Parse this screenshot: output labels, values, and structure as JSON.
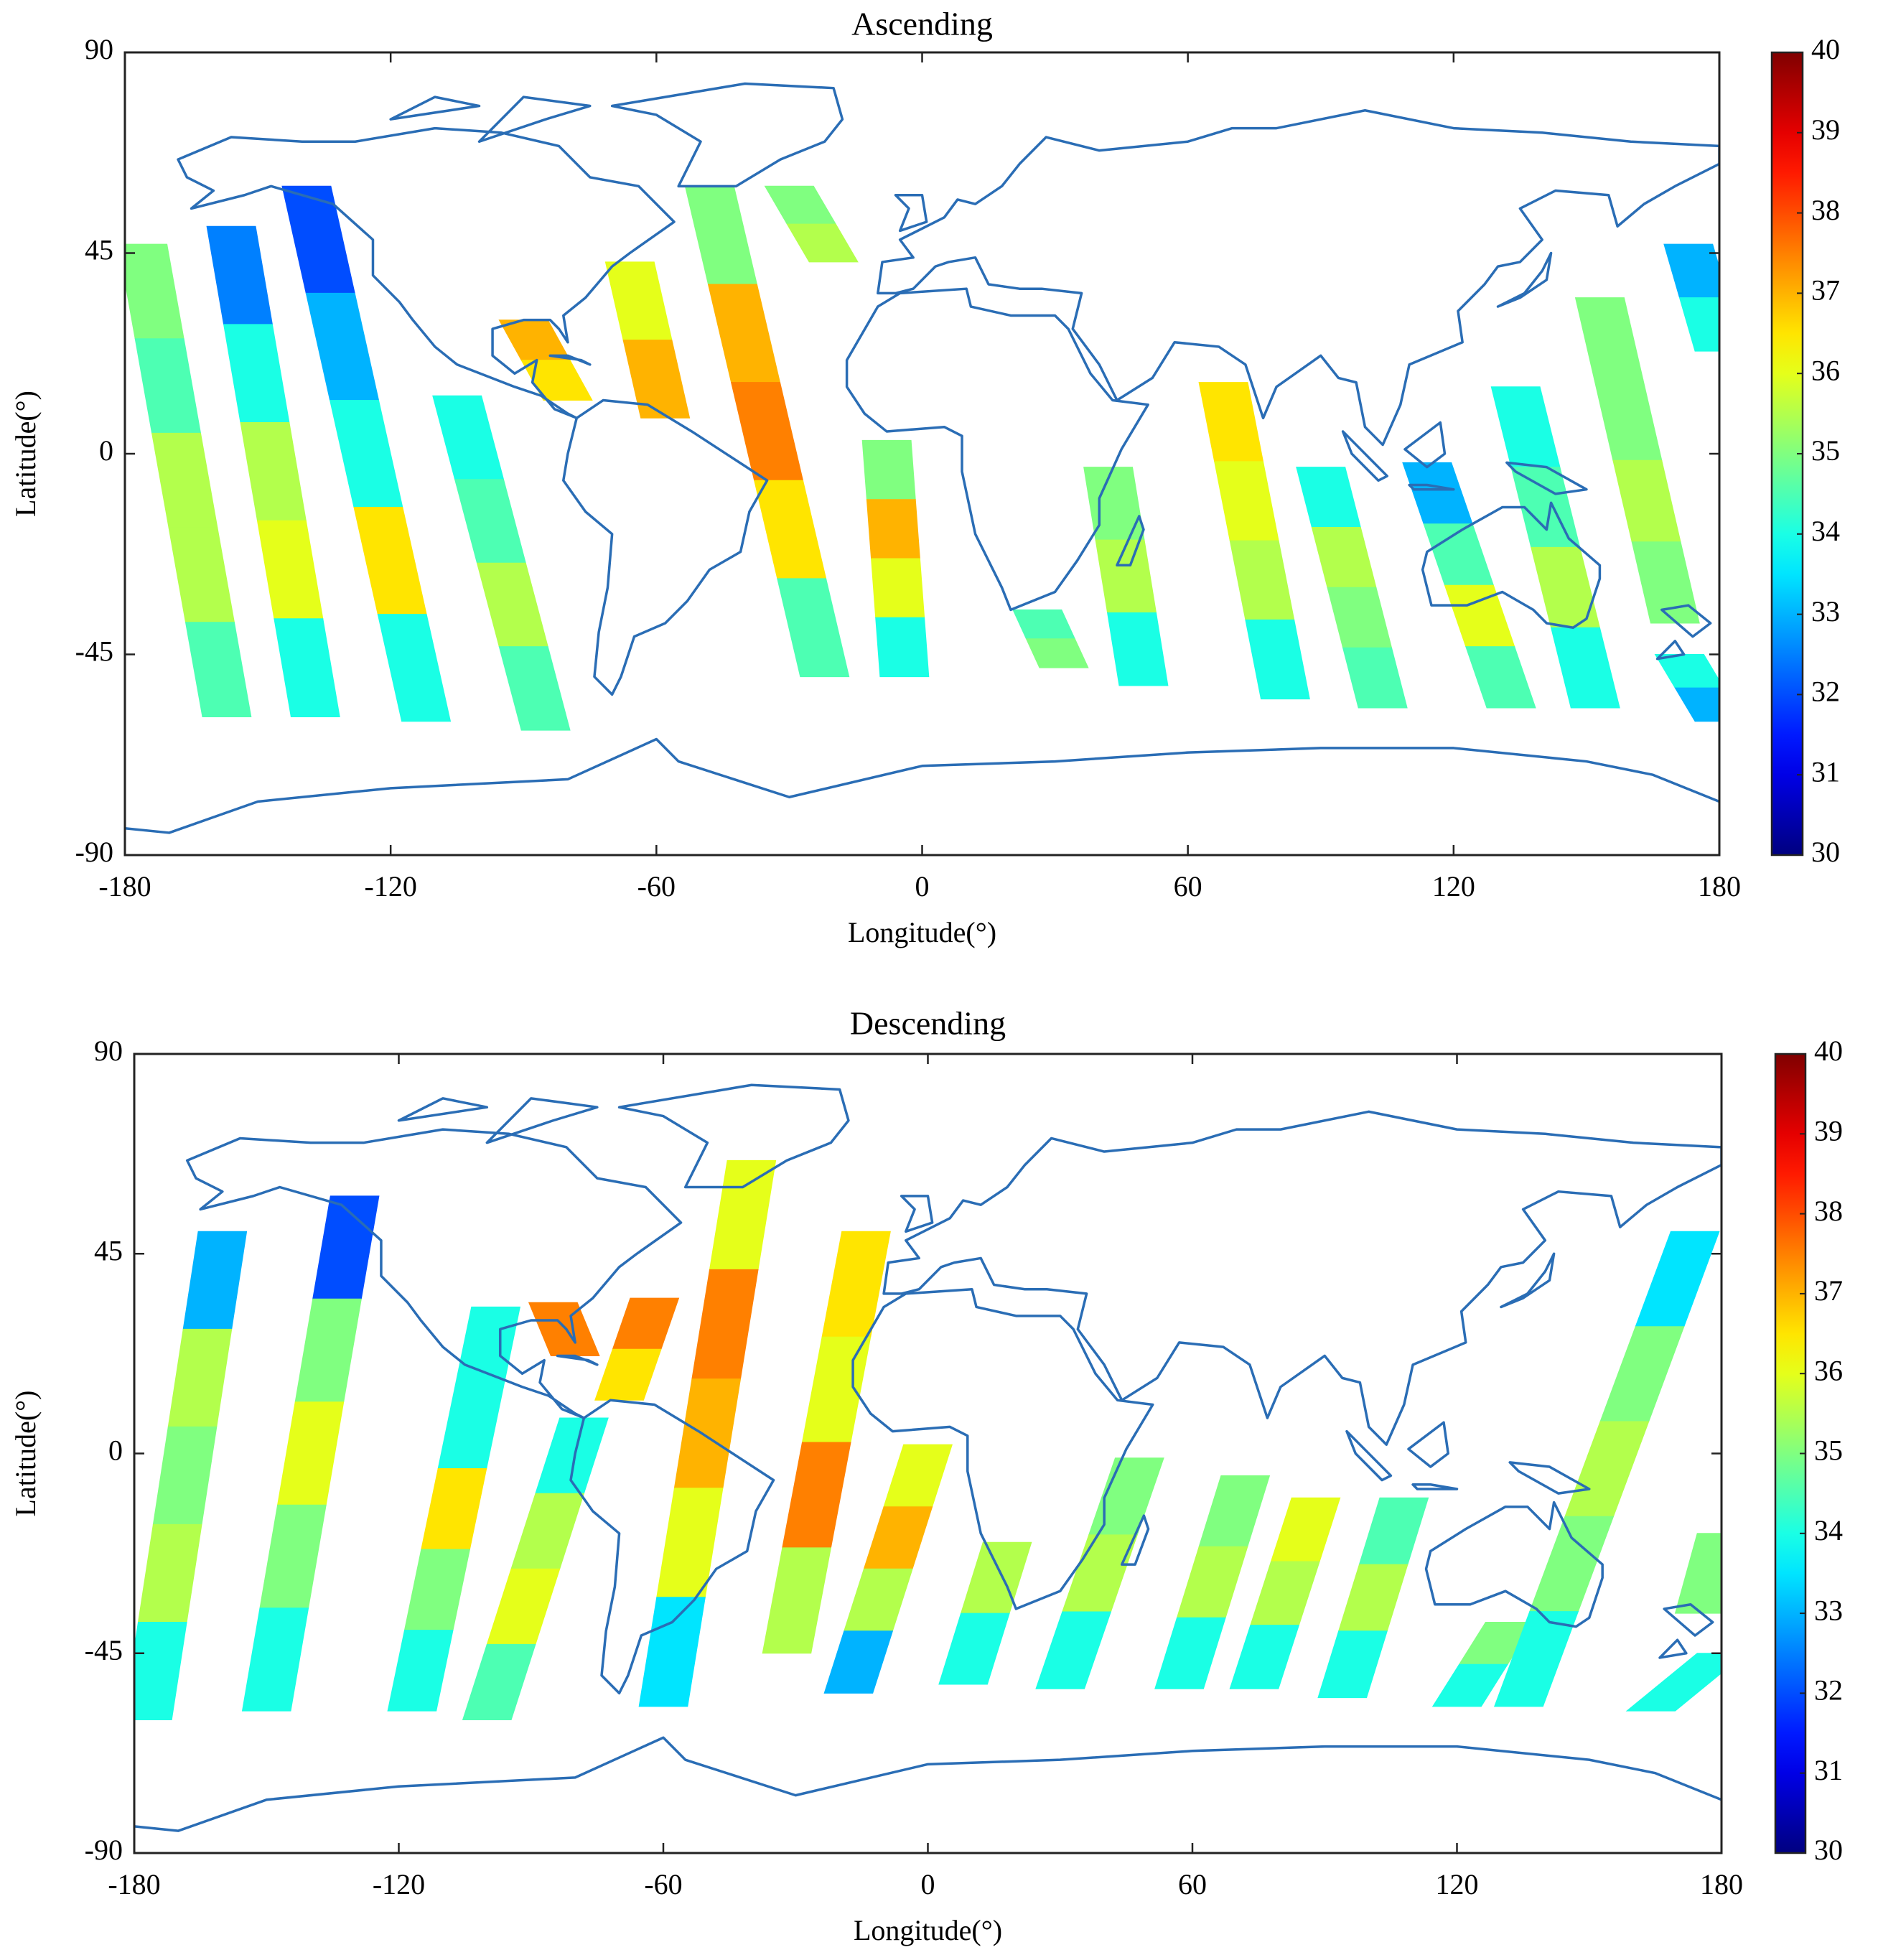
{
  "chart_data": [
    {
      "type": "map",
      "title": "Ascending",
      "xlabel": "Longitude(°)",
      "ylabel": "Latitude(°)",
      "xlim": [
        -180,
        180
      ],
      "ylim": [
        -90,
        90
      ],
      "xticks": [
        -180,
        -120,
        -60,
        0,
        60,
        120,
        180
      ],
      "yticks": [
        -90,
        -45,
        0,
        45,
        90
      ],
      "colormap": "jet",
      "colorbar": {
        "lim": [
          30,
          40
        ],
        "ticks": [
          30,
          31,
          32,
          33,
          34,
          35,
          36,
          37,
          38,
          39,
          40
        ]
      },
      "swaths": [
        {
          "lon": [
            -176,
            -157
          ],
          "lat": [
            47,
            -59
          ],
          "values": [
            35,
            34.5,
            35.5,
            35.5,
            34.5
          ]
        },
        {
          "lon": [
            -156,
            -137
          ],
          "lat": [
            51,
            -59
          ],
          "values": [
            32.5,
            34,
            35.5,
            36,
            34
          ]
        },
        {
          "lon": [
            -139,
            -112
          ],
          "lat": [
            60,
            -60
          ],
          "values": [
            32,
            33,
            34,
            36.5,
            34
          ]
        },
        {
          "lon": [
            -105,
            -85
          ],
          "lat": [
            13,
            -62
          ],
          "values": [
            34,
            34.5,
            35.5,
            34.5
          ]
        },
        {
          "lon": [
            -90,
            -80
          ],
          "lat": [
            30,
            12
          ],
          "values": [
            37,
            36.5
          ]
        },
        {
          "lon": [
            -66,
            -58
          ],
          "lat": [
            43,
            8
          ],
          "values": [
            36,
            37
          ]
        },
        {
          "lon": [
            -48,
            -22
          ],
          "lat": [
            60,
            -50
          ],
          "values": [
            35,
            37,
            37.5,
            36.5,
            34.5
          ]
        },
        {
          "lon": [
            -30,
            -20
          ],
          "lat": [
            60,
            43
          ],
          "values": [
            35,
            35.5
          ]
        },
        {
          "lon": [
            -8,
            -4
          ],
          "lat": [
            3,
            -50
          ],
          "values": [
            35,
            37,
            36,
            34
          ]
        },
        {
          "lon": [
            26,
            32
          ],
          "lat": [
            -35,
            -48
          ],
          "values": [
            34.5,
            35
          ]
        },
        {
          "lon": [
            42,
            50
          ],
          "lat": [
            -3,
            -52
          ],
          "values": [
            35,
            35.5,
            34
          ]
        },
        {
          "lon": [
            68,
            82
          ],
          "lat": [
            16,
            -55
          ],
          "values": [
            36.5,
            36,
            35.5,
            34
          ]
        },
        {
          "lon": [
            90,
            104
          ],
          "lat": [
            -3,
            -57
          ],
          "values": [
            34,
            35.5,
            35,
            34.5
          ]
        },
        {
          "lon": [
            114,
            133
          ],
          "lat": [
            -2,
            -57
          ],
          "values": [
            33,
            34.5,
            36,
            34.5
          ]
        },
        {
          "lon": [
            134,
            152
          ],
          "lat": [
            15,
            -57
          ],
          "values": [
            34,
            34.5,
            35.5,
            34
          ]
        },
        {
          "lon": [
            153,
            170
          ],
          "lat": [
            35,
            -38
          ],
          "values": [
            35,
            35,
            35.5,
            35
          ]
        },
        {
          "lon": [
            173,
            180
          ],
          "lat": [
            47,
            23
          ],
          "values": [
            33,
            34
          ]
        },
        {
          "lon": [
            171,
            180
          ],
          "lat": [
            -45,
            -60
          ],
          "values": [
            34,
            33
          ]
        }
      ]
    },
    {
      "type": "map",
      "title": "Descending",
      "xlabel": "Longitude(°)",
      "ylabel": "Latitude(°)",
      "xlim": [
        -180,
        180
      ],
      "ylim": [
        -90,
        90
      ],
      "xticks": [
        -180,
        -120,
        -60,
        0,
        60,
        120,
        180
      ],
      "yticks": [
        -90,
        -45,
        0,
        45,
        90
      ],
      "colormap": "jet",
      "colorbar": {
        "lim": [
          30,
          40
        ],
        "ticks": [
          30,
          31,
          32,
          33,
          34,
          35,
          36,
          37,
          38,
          39,
          40
        ]
      },
      "swaths": [
        {
          "lon": [
            -160,
            -177
          ],
          "lat": [
            50,
            -60
          ],
          "values": [
            33,
            35.5,
            35,
            35.5,
            34
          ]
        },
        {
          "lon": [
            -130,
            -150
          ],
          "lat": [
            58,
            -58
          ],
          "values": [
            32,
            35,
            36,
            35,
            34
          ]
        },
        {
          "lon": [
            -98,
            -117
          ],
          "lat": [
            33,
            -58
          ],
          "values": [
            34,
            34,
            36.5,
            35,
            34
          ]
        },
        {
          "lon": [
            -78,
            -100
          ],
          "lat": [
            8,
            -60
          ],
          "values": [
            34,
            35.5,
            36,
            34.5
          ]
        },
        {
          "lon": [
            -85,
            -80
          ],
          "lat": [
            34,
            22
          ],
          "values": [
            37.5
          ]
        },
        {
          "lon": [
            -62,
            -70
          ],
          "lat": [
            35,
            12
          ],
          "values": [
            37.5,
            36.5
          ]
        },
        {
          "lon": [
            -40,
            -60
          ],
          "lat": [
            66,
            -57
          ],
          "values": [
            36,
            37.5,
            37,
            36,
            33.5
          ]
        },
        {
          "lon": [
            -14,
            -32
          ],
          "lat": [
            50,
            -45
          ],
          "values": [
            36.5,
            36,
            37.5,
            35.5
          ]
        },
        {
          "lon": [
            0,
            -18
          ],
          "lat": [
            2,
            -54
          ],
          "values": [
            36,
            37,
            35.5,
            33
          ]
        },
        {
          "lon": [
            18,
            8
          ],
          "lat": [
            -20,
            -52
          ],
          "values": [
            35.5,
            34
          ]
        },
        {
          "lon": [
            48,
            30
          ],
          "lat": [
            -1,
            -53
          ],
          "values": [
            35,
            35.5,
            34
          ]
        },
        {
          "lon": [
            72,
            57
          ],
          "lat": [
            -5,
            -53
          ],
          "values": [
            35,
            35.5,
            34
          ]
        },
        {
          "lon": [
            88,
            74
          ],
          "lat": [
            -10,
            -53
          ],
          "values": [
            36,
            35.5,
            34
          ]
        },
        {
          "lon": [
            108,
            94
          ],
          "lat": [
            -10,
            -55
          ],
          "values": [
            34.5,
            35.5,
            34
          ]
        },
        {
          "lon": [
            132,
            120
          ],
          "lat": [
            -38,
            -57
          ],
          "values": [
            35,
            34
          ]
        },
        {
          "lon": [
            174,
            134
          ],
          "lat": [
            50,
            -57
          ],
          "values": [
            33.5,
            35,
            35.5,
            35,
            34
          ]
        },
        {
          "lon": [
            180,
            175
          ],
          "lat": [
            -18,
            -36
          ],
          "values": [
            35
          ]
        },
        {
          "lon": [
            180,
            164
          ],
          "lat": [
            -45,
            -58
          ],
          "values": [
            34
          ]
        }
      ]
    }
  ]
}
